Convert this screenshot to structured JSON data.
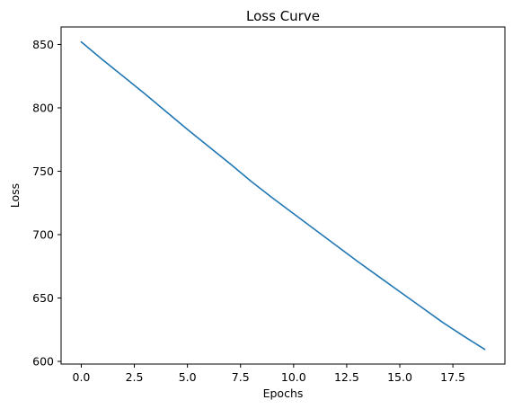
{
  "chart_data": {
    "type": "line",
    "title": "Loss Curve",
    "xlabel": "Epochs",
    "ylabel": "Loss",
    "xlim": [
      -0.95,
      19.95
    ],
    "ylim": [
      597.9,
      863.8
    ],
    "xticks": [
      0,
      2.5,
      5,
      7.5,
      10,
      12.5,
      15,
      17.5
    ],
    "xtick_labels": [
      "0.0",
      "2.5",
      "5.0",
      "7.5",
      "10.0",
      "12.5",
      "15.0",
      "17.5"
    ],
    "yticks": [
      600,
      650,
      700,
      750,
      800,
      850
    ],
    "ytick_labels": [
      "600",
      "650",
      "700",
      "750",
      "800",
      "850"
    ],
    "grid": false,
    "legend": false,
    "series": [
      {
        "color": "#1f77b4",
        "x": [
          0,
          1,
          2,
          3,
          4,
          5,
          6,
          7,
          8,
          9,
          10,
          11,
          12,
          13,
          14,
          15,
          16,
          17,
          18,
          19
        ],
        "y": [
          852,
          838,
          824.5,
          811,
          797,
          783,
          769.5,
          756,
          742,
          729,
          716.5,
          704,
          691.5,
          679,
          667,
          655,
          643,
          631,
          620,
          609.5
        ]
      }
    ]
  }
}
